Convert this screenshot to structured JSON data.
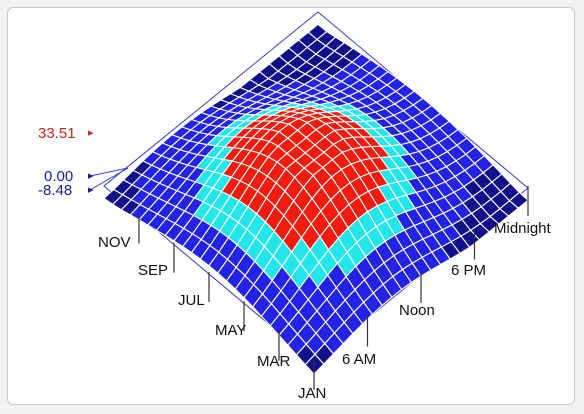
{
  "chart_data": {
    "type": "surface",
    "title": "",
    "x_axis": {
      "tick_labels": [
        "JAN",
        "MAR",
        "MAY",
        "JUL",
        "SEP",
        "NOV"
      ]
    },
    "y_axis": {
      "tick_labels": [
        "6 AM",
        "Noon",
        "6 PM",
        "Midnight"
      ]
    },
    "color_legend": [
      {
        "label": "33.51",
        "color": "#cc2a1e",
        "marker": "▸"
      },
      {
        "label": "0.00",
        "color": "#1a1aa6",
        "marker": "▸"
      },
      {
        "label": "-8.48",
        "color": "#1a1aa6",
        "marker": "▸"
      }
    ],
    "colors": {
      "low": "#10108a",
      "base": "#2323e6",
      "mid": "#22e6ea",
      "high": "#f21c0e",
      "grid": "#ffffff",
      "floor": "#3b3bd0"
    },
    "peak_region": "centered around mid-year months and midday hours",
    "z_range": [
      -8.48,
      33.51
    ]
  }
}
